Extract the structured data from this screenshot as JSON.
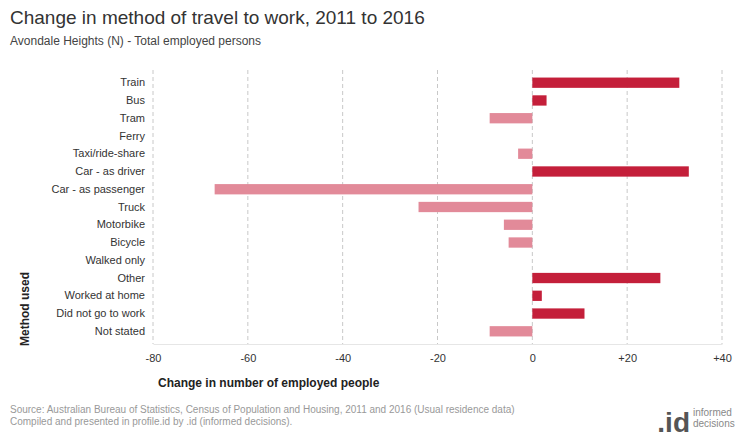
{
  "chart_data": {
    "type": "bar",
    "orientation": "horizontal",
    "title": "Change in method of travel to work, 2011 to 2016",
    "subtitle": "Avondale Heights (N) - Total employed persons",
    "x_label": "Change in number of employed people",
    "y_label": "Method used",
    "categories": [
      "Train",
      "Bus",
      "Tram",
      "Ferry",
      "Taxi/ride-share",
      "Car - as driver",
      "Car - as passenger",
      "Truck",
      "Motorbike",
      "Bicycle",
      "Walked only",
      "Other",
      "Worked at home",
      "Did not go to work",
      "Not stated"
    ],
    "values": [
      31,
      3,
      -9,
      0,
      -3,
      33,
      -67,
      -24,
      -6,
      -5,
      0,
      27,
      2,
      11,
      -9
    ],
    "colors": [
      "#c41f3a",
      "#c41f3a",
      "#e28a99",
      "#c41f3a",
      "#e28a99",
      "#c41f3a",
      "#e28a99",
      "#e28a99",
      "#e28a99",
      "#e28a99",
      "#c41f3a",
      "#c41f3a",
      "#c41f3a",
      "#c41f3a",
      "#e28a99"
    ],
    "xlim": [
      -80,
      40
    ],
    "xticks": [
      -80,
      -60,
      -40,
      -20,
      0,
      {
        "value": 20,
        "label": "+20"
      },
      {
        "value": 40,
        "label": "+40"
      }
    ],
    "grid": true,
    "source": [
      "Source: Australian Bureau of Statistics, Census of Population and Housing, 2011 and 2016 (Usual residence data)",
      "Compiled and presented in profile.id by .id (informed decisions)."
    ],
    "logo": {
      "mark": ".id",
      "text": [
        "informed",
        "decisions"
      ]
    }
  }
}
